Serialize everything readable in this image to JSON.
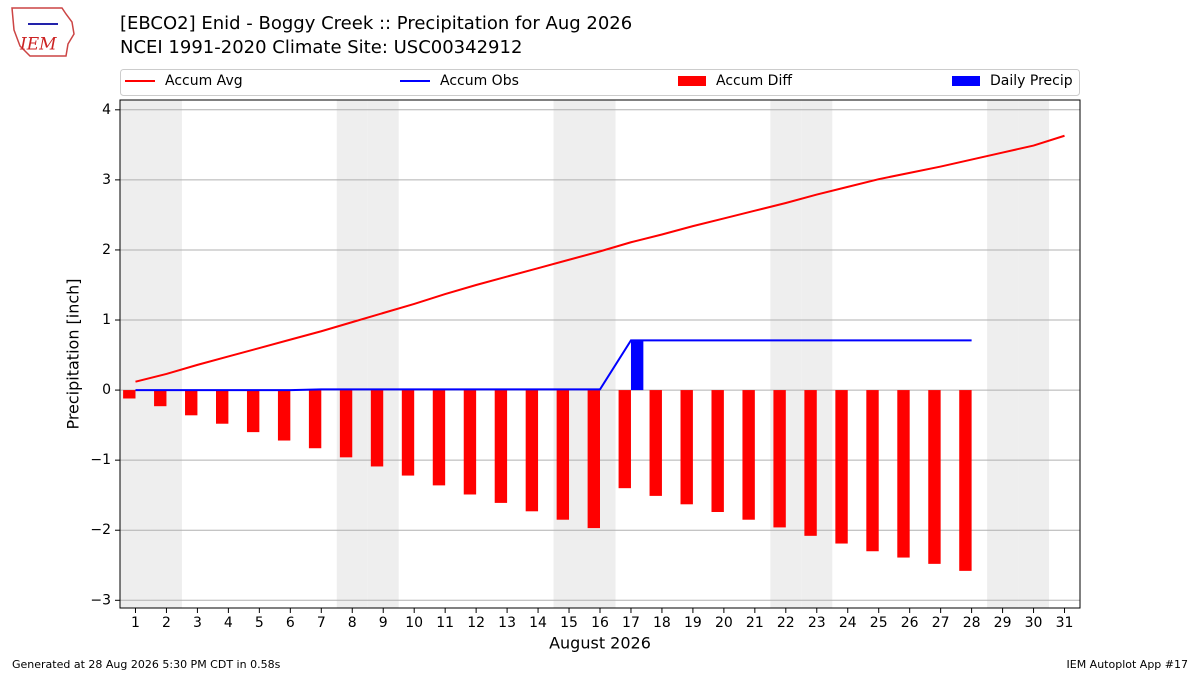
{
  "chart_data": {
    "type": "combo",
    "title": "[EBCO2] Enid - Boggy Creek :: Precipitation for Aug 2026",
    "subtitle": "NCEI 1991-2020 Climate Site: USC00342912",
    "logo": "IEM",
    "x_label": "August 2026",
    "y_label": "Precipitation [inch]",
    "footer_left": "Generated at 28 Aug 2026 5:30 PM CDT in 0.58s",
    "footer_right": "IEM Autoplot App #17",
    "x": [
      1,
      2,
      3,
      4,
      5,
      6,
      7,
      8,
      9,
      10,
      11,
      12,
      13,
      14,
      15,
      16,
      17,
      18,
      19,
      20,
      21,
      22,
      23,
      24,
      25,
      26,
      27,
      28,
      29,
      30,
      31
    ],
    "xlim": [
      0.5,
      31.5
    ],
    "xticks": [
      1,
      2,
      3,
      4,
      5,
      6,
      7,
      8,
      9,
      10,
      11,
      12,
      13,
      14,
      15,
      16,
      17,
      18,
      19,
      20,
      21,
      22,
      23,
      24,
      25,
      26,
      27,
      28,
      29,
      30,
      31
    ],
    "ylim": [
      -3.11,
      4.14
    ],
    "yticks": [
      {
        "value": -3,
        "label": "−3"
      },
      {
        "value": -2,
        "label": "−2"
      },
      {
        "value": -1,
        "label": "−1"
      },
      0,
      1,
      2,
      3,
      4
    ],
    "grid": true,
    "shaded_days": [
      1,
      2,
      8,
      9,
      15,
      16,
      22,
      23,
      29,
      30
    ],
    "series": [
      {
        "name": "Accum Avg",
        "type": "line",
        "color": "#ff0000",
        "values": [
          0.12,
          0.23,
          0.36,
          0.48,
          0.6,
          0.72,
          0.84,
          0.97,
          1.1,
          1.23,
          1.37,
          1.5,
          1.62,
          1.74,
          1.86,
          1.98,
          2.11,
          2.22,
          2.34,
          2.45,
          2.56,
          2.67,
          2.79,
          2.9,
          3.01,
          3.1,
          3.19,
          3.29,
          3.39,
          3.49,
          3.63
        ]
      },
      {
        "name": "Accum Obs",
        "type": "line",
        "color": "#0000ff",
        "values": [
          0,
          0,
          0,
          0,
          0,
          0,
          0.01,
          0.01,
          0.01,
          0.01,
          0.01,
          0.01,
          0.01,
          0.01,
          0.01,
          0.01,
          0.71,
          0.71,
          0.71,
          0.71,
          0.71,
          0.71,
          0.71,
          0.71,
          0.71,
          0.71,
          0.71,
          0.71,
          null,
          null,
          null
        ]
      },
      {
        "name": "Accum Diff",
        "type": "bar",
        "color": "#ff0000",
        "values": [
          -0.12,
          -0.23,
          -0.36,
          -0.48,
          -0.6,
          -0.72,
          -0.83,
          -0.96,
          -1.09,
          -1.22,
          -1.36,
          -1.49,
          -1.61,
          -1.73,
          -1.85,
          -1.97,
          -1.4,
          -1.51,
          -1.63,
          -1.74,
          -1.85,
          -1.96,
          -2.08,
          -2.19,
          -2.3,
          -2.39,
          -2.48,
          -2.58,
          null,
          null,
          null
        ]
      },
      {
        "name": "Daily Precip",
        "type": "bar",
        "color": "#0000ff",
        "values": [
          0,
          0,
          0,
          0,
          0,
          0,
          0,
          0,
          0,
          0,
          0,
          0,
          0,
          0,
          0,
          0,
          0.7,
          0,
          0,
          0,
          0,
          0,
          0,
          0,
          0,
          0,
          0,
          0,
          null,
          null,
          null
        ]
      }
    ]
  }
}
